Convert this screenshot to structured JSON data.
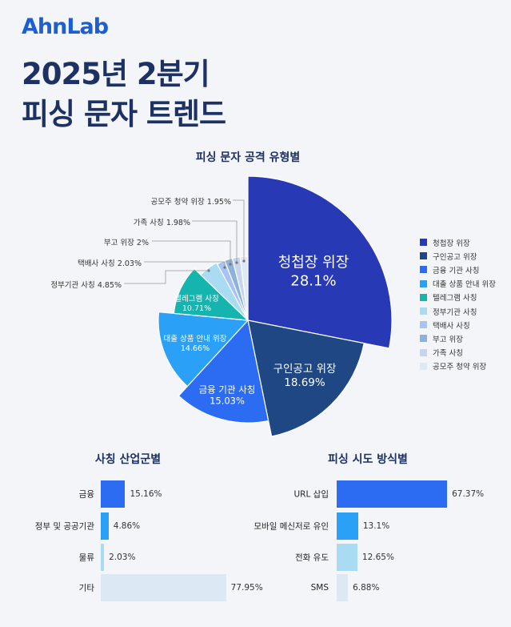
{
  "brand": {
    "logo": "AhnLab",
    "color": "#1b5fd1"
  },
  "header": {
    "title_line1": "2025년 2분기",
    "title_line2": "피싱 문자 트렌드"
  },
  "chart_data": [
    {
      "type": "pie",
      "title": "피싱 문자 공격 유형별",
      "legend_position": "right",
      "categories": [
        "청첩장 위장",
        "구인공고 위장",
        "금융 기관 사칭",
        "대출 상품 안내 위장",
        "텔레그램 사칭",
        "정부기관 사칭",
        "택배사 사칭",
        "부고 위장",
        "가족 사칭",
        "공모주 청약 위장"
      ],
      "values": [
        28.1,
        18.69,
        15.03,
        14.66,
        10.71,
        4.85,
        2.03,
        2,
        1.98,
        1.95
      ],
      "value_labels": [
        "28.1%",
        "18.69%",
        "15.03%",
        "14.66%",
        "10.71%",
        "4.85%",
        "2.03%",
        "2%",
        "1.98%",
        "1.95%"
      ],
      "colors": [
        "#2839b6",
        "#1e4784",
        "#2b6cf3",
        "#2aa1f6",
        "#15b4ae",
        "#a9dcf2",
        "#a7c2f6",
        "#8eb1da",
        "#c6d5ee",
        "#dfe9f5"
      ]
    },
    {
      "type": "bar",
      "orientation": "horizontal",
      "title": "사칭 산업군별",
      "categories": [
        "금융",
        "정부 및 공공기관",
        "물류",
        "기타"
      ],
      "values": [
        15.16,
        4.86,
        2.03,
        77.95
      ],
      "value_labels": [
        "15.16%",
        "4.86%",
        "2.03%",
        "77.95%"
      ],
      "colors": [
        "#2b6cf3",
        "#2aa1f6",
        "#a9dcf2",
        "#dce8f4"
      ]
    },
    {
      "type": "bar",
      "orientation": "horizontal",
      "title": "피싱 시도 방식별",
      "categories": [
        "URL 삽입",
        "모바일 메신저로 유인",
        "전화 유도",
        "SMS"
      ],
      "values": [
        67.37,
        13.1,
        12.65,
        6.88
      ],
      "value_labels": [
        "67.37%",
        "13.1%",
        "12.65%",
        "6.88%"
      ],
      "colors": [
        "#2b6cf3",
        "#2aa1f6",
        "#a9dcf2",
        "#dce8f4"
      ]
    }
  ]
}
